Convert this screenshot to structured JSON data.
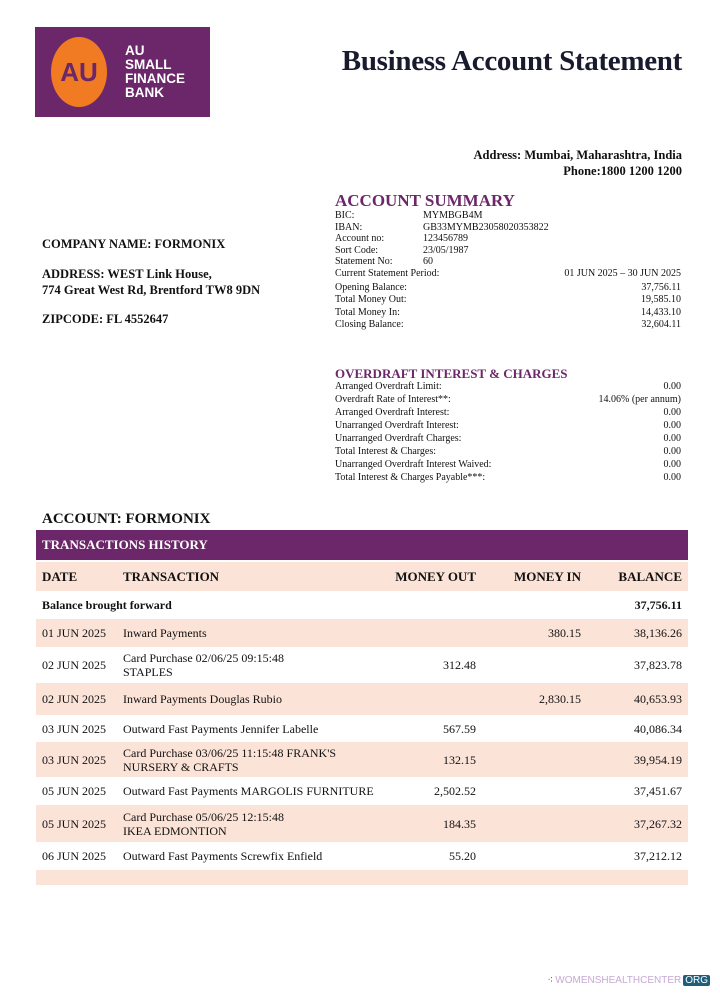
{
  "logo": {
    "mark": "AU",
    "text": [
      "AU",
      "SMALL",
      "FINANCE",
      "BANK"
    ],
    "colors": {
      "background": "#6b2769",
      "circle": "#f07b22"
    }
  },
  "title": "Business Account Statement",
  "bank_address": "Address: Mumbai, Maharashtra, India",
  "bank_phone": "Phone:1800 1200 1200",
  "company": {
    "name": "COMPANY NAME: FORMONIX",
    "address_line1": "ADDRESS: WEST Link House,",
    "address_line2": "774 Great West Rd, Brentford TW8 9DN",
    "zipcode": "ZIPCODE: FL 4552647"
  },
  "account_summary": {
    "title": "ACCOUNT SUMMARY",
    "ids": [
      {
        "label": "BIC:",
        "value": "MYMBGB4M"
      },
      {
        "label": "IBAN:",
        "value": "GB33MYMB23058020353822"
      },
      {
        "label": "Account no:",
        "value": "123456789"
      },
      {
        "label": "Sort Code:",
        "value": "23/05/1987"
      },
      {
        "label": "Statement No:",
        "value": "60"
      }
    ],
    "totals": [
      {
        "label": "Current Statement Period:",
        "value": "01 JUN 2025 – 30 JUN 2025"
      },
      {
        "label": "Opening Balance:",
        "value": "37,756.11"
      },
      {
        "label": "Total Money Out:",
        "value": "19,585.10"
      },
      {
        "label": "Total Money In:",
        "value": "14,433.10"
      },
      {
        "label": "Closing Balance:",
        "value": "32,604.11"
      }
    ]
  },
  "overdraft": {
    "title": "OVERDRAFT INTEREST & CHARGES",
    "rows": [
      {
        "label": "Arranged Overdraft Limit:",
        "value": "0.00"
      },
      {
        "label": "Overdraft Rate of Interest**:",
        "value": "14.06% (per annum)"
      },
      {
        "label": "Arranged Overdraft Interest:",
        "value": "0.00"
      },
      {
        "label": "Unarranged Overdraft Interest:",
        "value": "0.00"
      },
      {
        "label": "Unarranged Overdraft Charges:",
        "value": "0.00"
      },
      {
        "label": "Total Interest & Charges:",
        "value": "0.00"
      },
      {
        "label": "Unarranged Overdraft Interest Waived:",
        "value": "0.00"
      },
      {
        "label": "Total Interest & Charges Payable***:",
        "value": "0.00"
      }
    ]
  },
  "account_label": "ACCOUNT: FORMONIX",
  "transactions": {
    "title": "TRANSACTIONS HISTORY",
    "headers": {
      "date": "DATE",
      "transaction": "TRANSACTION",
      "money_out": "MONEY OUT",
      "money_in": "MONEY IN",
      "balance": "BALANCE"
    },
    "brought_forward": {
      "label": "Balance brought forward",
      "balance": "37,756.11"
    },
    "rows": [
      {
        "date": "01 JUN 2025",
        "tx1": "Inward Payments",
        "tx2": "",
        "out": "",
        "in": "380.15",
        "bal": "38,136.26"
      },
      {
        "date": "02 JUN 2025",
        "tx1": "Card Purchase 02/06/25 09:15:48",
        "tx2": "STAPLES",
        "out": "312.48",
        "in": "",
        "bal": "37,823.78"
      },
      {
        "date": "02 JUN 2025",
        "tx1": "Inward Payments Douglas Rubio",
        "tx2": "",
        "out": "",
        "in": "2,830.15",
        "bal": "40,653.93"
      },
      {
        "date": "03 JUN 2025",
        "tx1": "Outward Fast Payments Jennifer Labelle",
        "tx2": "",
        "out": "567.59",
        "in": "",
        "bal": "40,086.34"
      },
      {
        "date": "03 JUN 2025",
        "tx1": "Card Purchase 03/06/25 11:15:48 FRANK'S",
        "tx2": "NURSERY & CRAFTS",
        "out": "132.15",
        "in": "",
        "bal": "39,954.19"
      },
      {
        "date": "05 JUN 2025",
        "tx1": "Outward Fast Payments MARGOLIS FURNITURE",
        "tx2": "",
        "out": "2,502.52",
        "in": "",
        "bal": "37,451.67"
      },
      {
        "date": "05 JUN 2025",
        "tx1": "Card Purchase 05/06/25 12:15:48",
        "tx2": "IKEA EDMONTION",
        "out": "184.35",
        "in": "",
        "bal": "37,267.32"
      },
      {
        "date": "06 JUN 2025",
        "tx1": "Outward Fast Payments Screwfix Enfield",
        "tx2": "",
        "out": "55.20",
        "in": "",
        "bal": "37,212.12"
      }
    ]
  },
  "watermark": {
    "text": "WOMENSHEALTHCENTER",
    "tld": "ORG"
  },
  "colors": {
    "accent": "#6b2769",
    "row_shade": "#fce3d8"
  }
}
